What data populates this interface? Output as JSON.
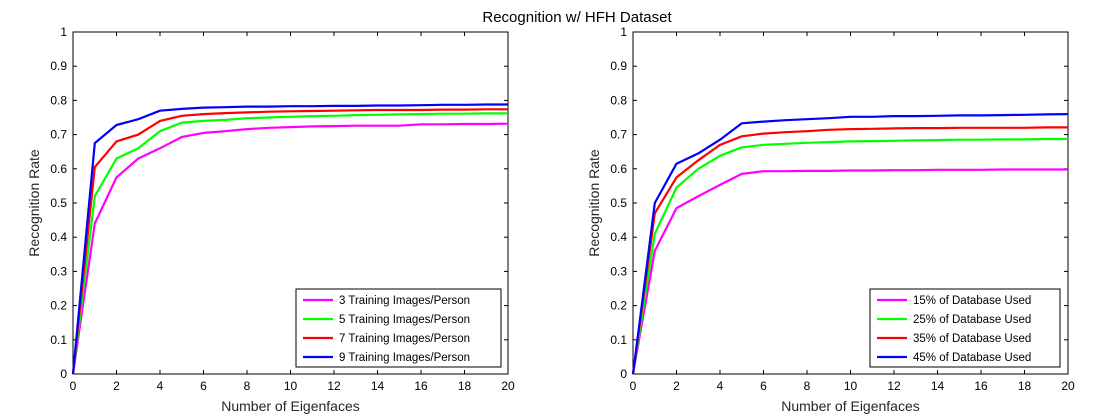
{
  "title": "Recognition w/ HFH Dataset",
  "chart_data": [
    {
      "type": "line",
      "xlabel": "Number of Eigenfaces",
      "ylabel": "Recognition Rate",
      "xlim": [
        0,
        20
      ],
      "ylim": [
        0,
        1
      ],
      "xticks": [
        "0",
        "2",
        "4",
        "6",
        "8",
        "10",
        "12",
        "14",
        "16",
        "18",
        "20"
      ],
      "yticks": [
        "0",
        "0.1",
        "0.2",
        "0.3",
        "0.4",
        "0.5",
        "0.6",
        "0.7",
        "0.8",
        "0.9",
        "1"
      ],
      "legend_position": "bottom-right",
      "x": [
        0,
        1,
        2,
        3,
        4,
        5,
        6,
        7,
        8,
        9,
        10,
        11,
        12,
        13,
        14,
        15,
        16,
        17,
        18,
        19,
        20
      ],
      "series": [
        {
          "name": "3 Training Images/Person",
          "color": "#ff00ff",
          "values": [
            0,
            0.44,
            0.575,
            0.63,
            0.66,
            0.693,
            0.705,
            0.71,
            0.716,
            0.72,
            0.722,
            0.724,
            0.725,
            0.726,
            0.726,
            0.726,
            0.73,
            0.73,
            0.731,
            0.731,
            0.732
          ]
        },
        {
          "name": "5 Training Images/Person",
          "color": "#00ff00",
          "values": [
            0,
            0.52,
            0.63,
            0.66,
            0.71,
            0.735,
            0.74,
            0.743,
            0.748,
            0.75,
            0.752,
            0.754,
            0.755,
            0.757,
            0.758,
            0.759,
            0.76,
            0.761,
            0.761,
            0.762,
            0.762
          ]
        },
        {
          "name": "7 Training Images/Person",
          "color": "#ff0000",
          "values": [
            0,
            0.605,
            0.68,
            0.7,
            0.74,
            0.755,
            0.76,
            0.763,
            0.765,
            0.767,
            0.768,
            0.769,
            0.77,
            0.771,
            0.772,
            0.772,
            0.772,
            0.773,
            0.773,
            0.774,
            0.774
          ]
        },
        {
          "name": "9 Training Images/Person",
          "color": "#0000ff",
          "values": [
            0,
            0.675,
            0.728,
            0.745,
            0.77,
            0.775,
            0.779,
            0.78,
            0.782,
            0.782,
            0.783,
            0.783,
            0.784,
            0.784,
            0.785,
            0.785,
            0.786,
            0.787,
            0.787,
            0.788,
            0.788
          ]
        }
      ]
    },
    {
      "type": "line",
      "xlabel": "Number of Eigenfaces",
      "ylabel": "Recognition Rate",
      "xlim": [
        0,
        20
      ],
      "ylim": [
        0,
        1
      ],
      "xticks": [
        "0",
        "2",
        "4",
        "6",
        "8",
        "10",
        "12",
        "14",
        "16",
        "18",
        "20"
      ],
      "yticks": [
        "0",
        "0.1",
        "0.2",
        "0.3",
        "0.4",
        "0.5",
        "0.6",
        "0.7",
        "0.8",
        "0.9",
        "1"
      ],
      "legend_position": "bottom-right",
      "x": [
        0,
        1,
        2,
        3,
        4,
        5,
        6,
        7,
        8,
        9,
        10,
        11,
        12,
        13,
        14,
        15,
        16,
        17,
        18,
        19,
        20
      ],
      "series": [
        {
          "name": "15% of Database Used",
          "color": "#ff00ff",
          "values": [
            0,
            0.36,
            0.485,
            0.52,
            0.553,
            0.585,
            0.593,
            0.593,
            0.594,
            0.594,
            0.595,
            0.595,
            0.596,
            0.596,
            0.597,
            0.597,
            0.597,
            0.598,
            0.598,
            0.598,
            0.598
          ]
        },
        {
          "name": "25% of Database Used",
          "color": "#00ff00",
          "values": [
            0,
            0.41,
            0.545,
            0.6,
            0.638,
            0.663,
            0.67,
            0.673,
            0.676,
            0.678,
            0.68,
            0.681,
            0.682,
            0.683,
            0.684,
            0.685,
            0.685,
            0.686,
            0.686,
            0.687,
            0.687
          ]
        },
        {
          "name": "35% of Database Used",
          "color": "#ff0000",
          "values": [
            0,
            0.47,
            0.575,
            0.625,
            0.67,
            0.695,
            0.703,
            0.707,
            0.71,
            0.714,
            0.716,
            0.717,
            0.718,
            0.719,
            0.719,
            0.72,
            0.72,
            0.72,
            0.72,
            0.721,
            0.721
          ]
        },
        {
          "name": "45% of Database Used",
          "color": "#0000ff",
          "values": [
            0,
            0.5,
            0.615,
            0.645,
            0.685,
            0.733,
            0.738,
            0.742,
            0.745,
            0.748,
            0.752,
            0.752,
            0.754,
            0.754,
            0.755,
            0.756,
            0.756,
            0.757,
            0.758,
            0.759,
            0.76
          ]
        }
      ]
    }
  ]
}
